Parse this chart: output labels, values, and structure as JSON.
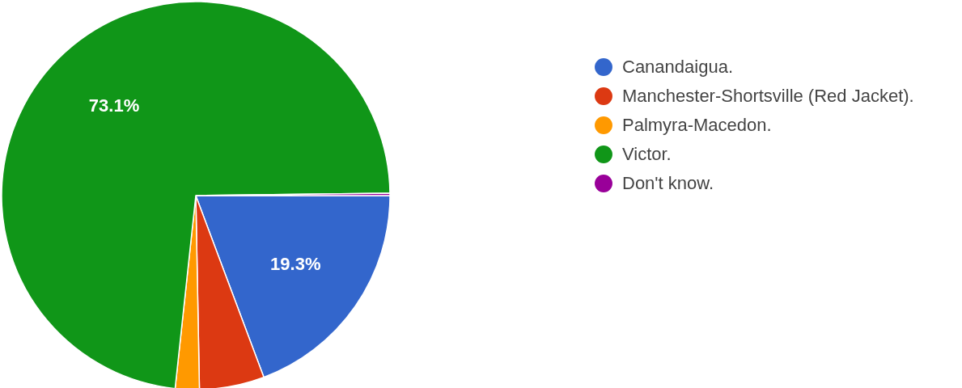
{
  "chart_data": {
    "type": "pie",
    "categories": [
      "Canandaigua.",
      "Manchester-Shortsville (Red Jacket).",
      "Palmyra-Macedon.",
      "Victor.",
      "Don't know."
    ],
    "values": [
      19.3,
      5.4,
      2.0,
      73.1,
      0.2
    ],
    "colors": [
      "#3366cc",
      "#dc3912",
      "#ff9900",
      "#109618",
      "#990099"
    ],
    "value_labels": [
      "19.3%",
      null,
      null,
      "73.1%",
      null
    ],
    "legend": "right"
  }
}
